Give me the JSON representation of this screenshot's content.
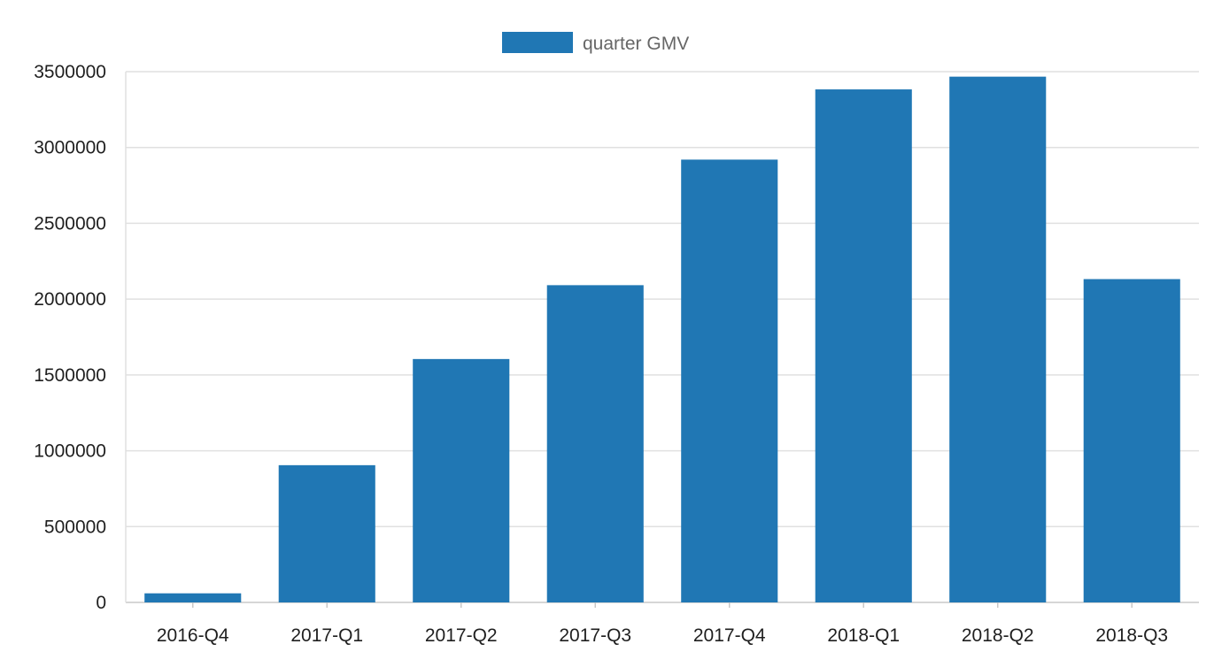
{
  "chart_data": {
    "type": "bar",
    "categories": [
      "2016-Q4",
      "2017-Q1",
      "2017-Q2",
      "2017-Q3",
      "2017-Q4",
      "2018-Q1",
      "2018-Q2",
      "2018-Q3"
    ],
    "series": [
      {
        "name": "quarter GMV",
        "values": [
          60000,
          905000,
          1605000,
          2092000,
          2920000,
          3383000,
          3467000,
          2132000
        ]
      }
    ],
    "ylim": [
      0,
      3500000
    ],
    "y_ticks": [
      "0",
      "500000",
      "1000000",
      "1500000",
      "2000000",
      "2500000",
      "3000000",
      "3500000"
    ],
    "title": "",
    "xlabel": "",
    "ylabel": "",
    "grid": true,
    "legend_position": "top-center",
    "colors": {
      "bar": "#2077b4",
      "grid": "#e0e0e0",
      "axis": "#c8c8c8",
      "tick_text": "#1f1f1f",
      "legend_text": "#666666"
    }
  }
}
